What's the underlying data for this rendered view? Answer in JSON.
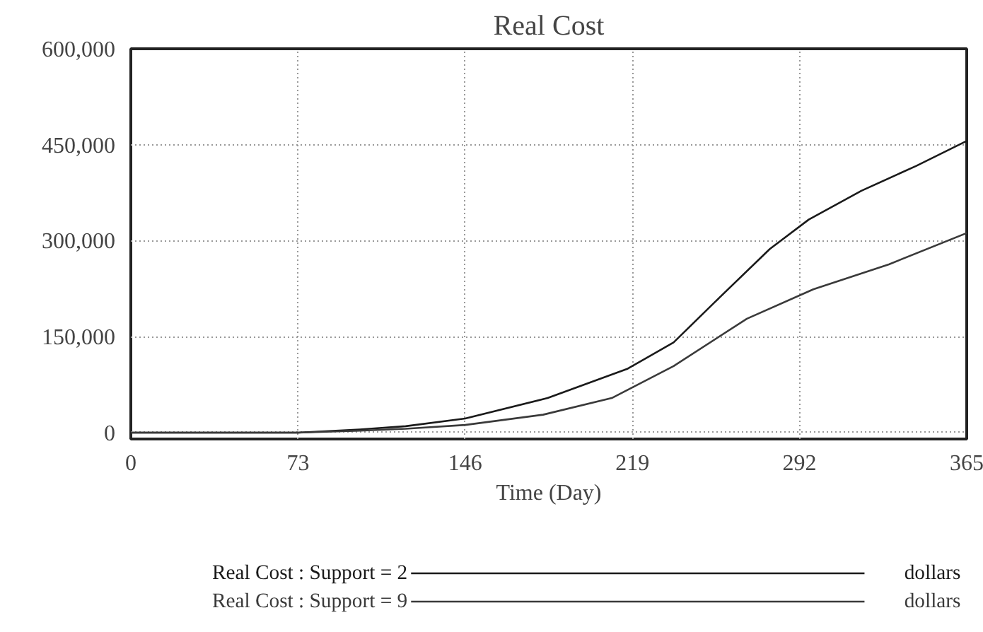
{
  "chart_data": {
    "type": "line",
    "title": "Real Cost",
    "xlabel": "Time (Day)",
    "xlim": [
      0,
      365
    ],
    "xticks": [
      0,
      73,
      146,
      219,
      292,
      365
    ],
    "ylim": [
      -10000,
      600000
    ],
    "yticks": [
      {
        "value": 0,
        "label": "0"
      },
      {
        "value": 150000,
        "label": "150,000"
      },
      {
        "value": 300000,
        "label": "300,000"
      },
      {
        "value": 450000,
        "label": "450,000"
      },
      {
        "value": 600000,
        "label": "600,000"
      }
    ],
    "grid": true,
    "legend": "bottom",
    "marker": "none",
    "line_style": "solid",
    "series": [
      {
        "name": "Real Cost : Support = 2",
        "color": "#1a1a1a",
        "x": [
          0,
          73,
          100,
          120,
          146,
          182,
          217,
          237,
          255,
          279,
          296,
          319,
          343,
          365
        ],
        "values": [
          0,
          0,
          5000,
          10000,
          22000,
          54000,
          100000,
          141000,
          204000,
          287000,
          333000,
          378000,
          417000,
          456000
        ]
      },
      {
        "name": "Real Cost : Support = 9",
        "color": "#3a3a3a",
        "x": [
          0,
          73,
          100,
          120,
          146,
          180,
          210,
          237,
          269,
          298,
          331,
          365
        ],
        "values": [
          0,
          0,
          3000,
          6000,
          12000,
          28000,
          54000,
          104000,
          178000,
          224000,
          263000,
          312000
        ]
      }
    ],
    "annotations": [
      "dollars",
      "dollars"
    ]
  }
}
